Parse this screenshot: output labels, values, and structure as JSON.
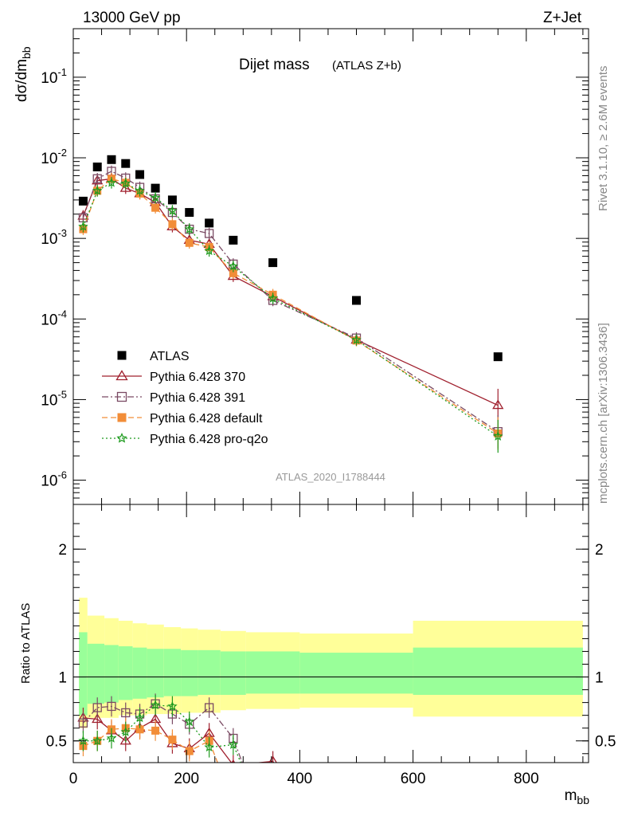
{
  "header": {
    "energy_label": "13000 GeV pp",
    "process_label": "Z+Jet"
  },
  "side": {
    "rivet_label": "Rivet 3.1.10, ≥ 2.6M events",
    "mcplots_label": "mcplots.cern.ch [arXiv:1306.3436]"
  },
  "watermark": "ATLAS_2020_I1788444",
  "chart_data": [
    {
      "type": "scatter",
      "title": "Dijet mass",
      "subtitle": "(ATLAS Z+b)",
      "ylabel": "dσ/dm_bb",
      "ylabel_main": "dσ/dm",
      "ylabel_sub": "bb",
      "yscale": "log",
      "xlim": [
        0,
        910
      ],
      "ylim": [
        5e-07,
        0.4
      ],
      "y_ticks": [
        {
          "v": 1e-06,
          "base": "10",
          "exp": "-6"
        },
        {
          "v": 1e-05,
          "base": "10",
          "exp": "-5"
        },
        {
          "v": 0.0001,
          "base": "10",
          "exp": "-4"
        },
        {
          "v": 0.001,
          "base": "10",
          "exp": "-3"
        },
        {
          "v": 0.01,
          "base": "10",
          "exp": "-2"
        },
        {
          "v": 0.1,
          "base": "10",
          "exp": "-1"
        }
      ],
      "legend_placement": "lower-left",
      "series": [
        {
          "name": "ATLAS",
          "color": "#000000",
          "marker": "square-filled",
          "line": "none",
          "x": [
            17.5,
            42.5,
            67.5,
            92.5,
            117.5,
            145,
            175,
            205,
            240,
            282.5,
            352.5,
            500,
            750
          ],
          "y": [
            0.0029,
            0.0077,
            0.0095,
            0.0085,
            0.0062,
            0.0042,
            0.003,
            0.0021,
            0.00155,
            0.00095,
            0.0005,
            0.00017,
            3.4e-05
          ]
        },
        {
          "name": "Pythia 6.428 370",
          "color": "#a0202e",
          "marker": "triangle-open",
          "line": "solid",
          "x": [
            17.5,
            42.5,
            67.5,
            92.5,
            117.5,
            145,
            175,
            205,
            240,
            282.5,
            352.5,
            500,
            750
          ],
          "y": [
            0.0019,
            0.0052,
            0.0055,
            0.0042,
            0.0036,
            0.0028,
            0.0014,
            0.00095,
            0.00085,
            0.00034,
            0.00019,
            5.5e-05,
            8.5e-06
          ]
        },
        {
          "name": "Pythia 6.428 391",
          "color": "#7a4a63",
          "marker": "square-open",
          "line": "dashdot",
          "x": [
            17.5,
            42.5,
            67.5,
            92.5,
            117.5,
            145,
            175,
            205,
            240,
            282.5,
            352.5,
            500,
            750
          ],
          "y": [
            0.0018,
            0.0055,
            0.0068,
            0.0056,
            0.0043,
            0.0031,
            0.0021,
            0.0013,
            0.00115,
            0.00048,
            0.00017,
            5.8e-05,
            4e-06
          ]
        },
        {
          "name": "Pythia 6.428 default",
          "color": "#f28d38",
          "marker": "square-filled",
          "line": "dashed",
          "x": [
            17.5,
            42.5,
            67.5,
            92.5,
            117.5,
            145,
            175,
            205,
            240,
            282.5,
            352.5,
            500,
            750
          ],
          "y": [
            0.0013,
            0.0039,
            0.0055,
            0.0049,
            0.0036,
            0.0024,
            0.0015,
            0.00088,
            0.00078,
            0.00037,
            0.0002,
            5.4e-05,
            3.8e-06
          ]
        },
        {
          "name": "Pythia 6.428 pro-q2o",
          "color": "#1e9b1e",
          "marker": "star-open",
          "line": "dotted",
          "x": [
            17.5,
            42.5,
            67.5,
            92.5,
            117.5,
            145,
            175,
            205,
            240,
            282.5,
            352.5,
            500,
            750
          ],
          "y": [
            0.0014,
            0.0039,
            0.0049,
            0.0048,
            0.0039,
            0.0032,
            0.0022,
            0.0013,
            0.0007,
            0.00045,
            0.00018,
            5.5e-05,
            3.5e-06
          ]
        }
      ]
    },
    {
      "type": "scatter",
      "ylabel": "Ratio to ATLAS",
      "xlabel": "m_bb",
      "xlabel_main": "m",
      "xlabel_sub": "bb",
      "xlim": [
        0,
        910
      ],
      "ylim": [
        0.33,
        2.35
      ],
      "x_ticks": [
        0,
        200,
        400,
        600,
        800
      ],
      "y_ticks": [
        0.5,
        1,
        2
      ],
      "reference_line": 1,
      "bands": {
        "edges": [
          10,
          25,
          55,
          80,
          105,
          130,
          160,
          190,
          220,
          260,
          305,
          400,
          600,
          900
        ],
        "yellow_lo": [
          0.6,
          0.68,
          0.68,
          0.7,
          0.7,
          0.71,
          0.71,
          0.72,
          0.72,
          0.74,
          0.75,
          0.76,
          0.69
        ],
        "yellow_hi": [
          1.62,
          1.48,
          1.46,
          1.44,
          1.42,
          1.41,
          1.39,
          1.38,
          1.37,
          1.36,
          1.35,
          1.34,
          1.44
        ],
        "green_lo": [
          0.7,
          0.79,
          0.8,
          0.82,
          0.83,
          0.84,
          0.85,
          0.85,
          0.86,
          0.86,
          0.87,
          0.87,
          0.86
        ],
        "green_hi": [
          1.35,
          1.26,
          1.25,
          1.24,
          1.23,
          1.22,
          1.22,
          1.21,
          1.21,
          1.2,
          1.2,
          1.19,
          1.23
        ],
        "yellow_color": "#ffff99",
        "green_color": "#99ff99"
      },
      "series": [
        {
          "name": "Pythia 6.428 370",
          "color": "#a0202e",
          "marker": "triangle-open",
          "line": "solid",
          "x": [
            17.5,
            42.5,
            67.5,
            92.5,
            117.5,
            145,
            175,
            205,
            240,
            282.5,
            352.5
          ],
          "y": [
            0.68,
            0.67,
            0.58,
            0.5,
            0.6,
            0.67,
            0.48,
            0.44,
            0.56,
            0.31,
            0.34
          ]
        },
        {
          "name": "Pythia 6.428 391",
          "color": "#7a4a63",
          "marker": "square-open",
          "line": "dashdot",
          "x": [
            17.5,
            42.5,
            67.5,
            92.5,
            117.5,
            145,
            175,
            205,
            240,
            282.5
          ],
          "y": [
            0.64,
            0.76,
            0.77,
            0.72,
            0.71,
            0.79,
            0.71,
            0.63,
            0.76,
            0.52
          ]
        },
        {
          "name": "Pythia 6.428 default",
          "color": "#f28d38",
          "marker": "square-filled",
          "line": "dashed",
          "x": [
            17.5,
            42.5,
            67.5,
            92.5,
            117.5,
            145,
            175,
            205,
            240
          ],
          "y": [
            0.46,
            0.5,
            0.59,
            0.6,
            0.59,
            0.58,
            0.51,
            0.42,
            0.5
          ]
        },
        {
          "name": "Pythia 6.428 pro-q2o",
          "color": "#1e9b1e",
          "marker": "star-open",
          "line": "dotted",
          "x": [
            17.5,
            42.5,
            67.5,
            92.5,
            117.5,
            145,
            175,
            205,
            240,
            282.5
          ],
          "y": [
            0.5,
            0.5,
            0.52,
            0.57,
            0.68,
            0.78,
            0.77,
            0.65,
            0.45,
            0.47
          ]
        }
      ]
    }
  ]
}
